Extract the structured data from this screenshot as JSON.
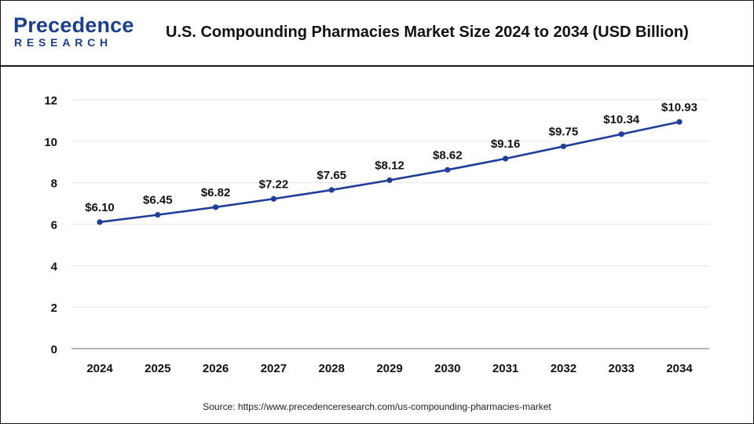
{
  "header": {
    "logo_main": "Precedence",
    "logo_sub": "RESEARCH",
    "title": "U.S. Compounding Pharmacies Market Size 2024 to 2034 (USD Billion)"
  },
  "footer": {
    "source": "Source: https://www.precedenceresearch.com/us-compounding-pharmacies-market"
  },
  "colors": {
    "brand": "#1b3f8f",
    "line": "#1f3d99",
    "grid": "#e6e6e6",
    "axis": "#888888",
    "text": "#111111"
  },
  "chart_data": {
    "type": "line",
    "title": "U.S. Compounding Pharmacies Market Size 2024 to 2034 (USD Billion)",
    "xlabel": "",
    "ylabel": "",
    "categories": [
      "2024",
      "2025",
      "2026",
      "2027",
      "2028",
      "2029",
      "2030",
      "2031",
      "2032",
      "2033",
      "2034"
    ],
    "values": [
      6.1,
      6.45,
      6.82,
      7.22,
      7.65,
      8.12,
      8.62,
      9.16,
      9.75,
      10.34,
      10.93
    ],
    "data_labels": [
      "$6.10",
      "$6.45",
      "$6.82",
      "$7.22",
      "$7.65",
      "$8.12",
      "$8.62",
      "$9.16",
      "$9.75",
      "$10.34",
      "$10.93"
    ],
    "ylim": [
      0,
      12
    ],
    "yticks": [
      0,
      2,
      4,
      6,
      8,
      10,
      12
    ],
    "grid": true,
    "legend": "none"
  }
}
